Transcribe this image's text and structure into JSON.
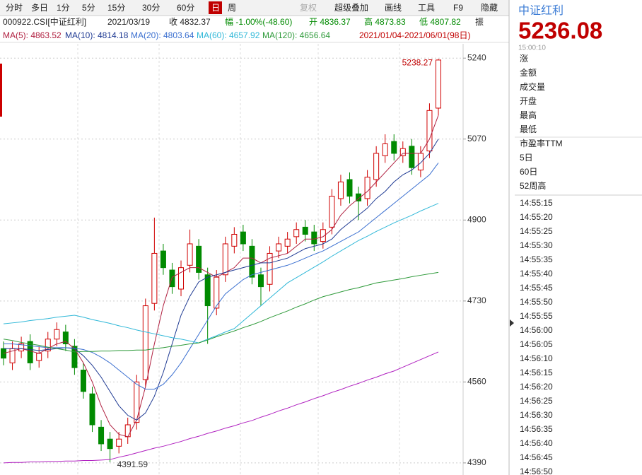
{
  "toolbar": {
    "periods": [
      "分时",
      "多日",
      "1分",
      "5分",
      "15分",
      "30分",
      "60分",
      "日",
      "周"
    ],
    "tools": [
      "复权",
      "超级叠加",
      "画线",
      "工具",
      "F9",
      "隐藏"
    ]
  },
  "info": {
    "code": "000922.CSI[中证红利]",
    "date": "2021/03/19",
    "close": "收 4832.37",
    "change": "幅 -1.00%(-48.60)",
    "open": "开 4836.37",
    "high": "高 4873.83",
    "low": "低 4807.82",
    "amp": "振",
    "range": "2021/01/04-2021/06/01(98日)"
  },
  "ma_legend": [
    "MA(5): 4863.52",
    "MA(10): 4814.18",
    "MA(20): 4803.64",
    "MA(60): 4657.92",
    "MA(120): 4656.64"
  ],
  "quote": {
    "name": "中证红利",
    "price": "5236.08",
    "time": "15:00:10",
    "fields": [
      "涨",
      "金额",
      "成交量",
      "开盘",
      "最高",
      "最低"
    ],
    "fields2": [
      "市盈率TTM",
      "5日",
      "60日",
      "52周高"
    ],
    "ticks": [
      "14:55:15",
      "14:55:20",
      "14:55:25",
      "14:55:30",
      "14:55:35",
      "14:55:40",
      "14:55:45",
      "14:55:50",
      "14:55:55",
      "14:56:00",
      "14:56:05",
      "14:56:10",
      "14:56:15",
      "14:56:20",
      "14:56:25",
      "14:56:30",
      "14:56:35",
      "14:56:40",
      "14:56:45",
      "14:56:50"
    ]
  },
  "chart_data": {
    "type": "candlestick",
    "ylim": [
      4375,
      5270
    ],
    "yticks": [
      4390,
      4560,
      4730,
      4900,
      5070,
      5240
    ],
    "grid": true,
    "up_color": "#d00000",
    "down_color": "#008a00",
    "open": [
      4630,
      4600,
      4625,
      4645,
      4605,
      4625,
      4650,
      4665,
      4635,
      4585,
      4535,
      4465,
      4440,
      4425,
      4445,
      4475,
      4565,
      4725,
      4835,
      4795,
      4755,
      4805,
      4845,
      4785,
      4715,
      4785,
      4845,
      4875,
      4845,
      4785,
      4765,
      4835,
      4845,
      4865,
      4885,
      4875,
      4855,
      4885,
      4945,
      4985,
      4955,
      4945,
      4985,
      5035,
      5065,
      5035,
      5055,
      5005,
      5045,
      5135
    ],
    "high": [
      4645,
      4645,
      4655,
      4660,
      4635,
      4665,
      4685,
      4680,
      4650,
      4600,
      4550,
      4480,
      4455,
      4455,
      4485,
      4575,
      4735,
      4905,
      4850,
      4810,
      4815,
      4880,
      4860,
      4800,
      4795,
      4865,
      4885,
      4890,
      4860,
      4800,
      4845,
      4865,
      4875,
      4895,
      4900,
      4890,
      4895,
      4965,
      4995,
      5000,
      4970,
      5005,
      5055,
      5080,
      5080,
      5065,
      5070,
      5055,
      5145,
      5238.27
    ],
    "low": [
      4595,
      4585,
      4610,
      4585,
      4590,
      4610,
      4635,
      4625,
      4575,
      4525,
      4455,
      4415,
      4391.59,
      4410,
      4430,
      4460,
      4550,
      4710,
      4785,
      4745,
      4740,
      4790,
      4775,
      4640,
      4700,
      4770,
      4830,
      4835,
      4765,
      4720,
      4750,
      4820,
      4830,
      4850,
      4855,
      4835,
      4840,
      4870,
      4930,
      4935,
      4900,
      4930,
      4970,
      5020,
      5025,
      5020,
      4995,
      4990,
      5030,
      5120
    ],
    "close": [
      4610,
      4630,
      4640,
      4600,
      4620,
      4650,
      4670,
      4640,
      4590,
      4540,
      4470,
      4430,
      4420,
      4440,
      4470,
      4560,
      4720,
      4830,
      4800,
      4760,
      4800,
      4850,
      4790,
      4720,
      4780,
      4850,
      4870,
      4850,
      4780,
      4760,
      4830,
      4850,
      4860,
      4880,
      4870,
      4850,
      4880,
      4950,
      4980,
      4950,
      4940,
      4990,
      5040,
      5060,
      5040,
      5050,
      5010,
      5040,
      5130,
      5236
    ],
    "series": [
      {
        "color": "#b02040",
        "values": [
          4620,
          4625,
          4630,
          4625,
          4620,
          4630,
          4640,
          4645,
          4630,
          4600,
          4560,
          4510,
          4470,
          4450,
          4445,
          4480,
          4550,
          4640,
          4720,
          4780,
          4790,
          4800,
          4800,
          4790,
          4780,
          4790,
          4800,
          4820,
          4820,
          4810,
          4820,
          4825,
          4830,
          4845,
          4860,
          4860,
          4865,
          4880,
          4910,
          4930,
          4945,
          4960,
          4980,
          5000,
          5020,
          5040,
          5040,
          5040,
          5070,
          5120
        ]
      },
      {
        "color": "#1f3a93",
        "values": [
          4630,
          4630,
          4630,
          4628,
          4626,
          4628,
          4630,
          4632,
          4630,
          4615,
          4595,
          4570,
          4540,
          4510,
          4490,
          4480,
          4495,
          4530,
          4580,
          4640,
          4700,
          4740,
          4770,
          4780,
          4785,
          4790,
          4795,
          4800,
          4805,
          4810,
          4810,
          4815,
          4820,
          4830,
          4840,
          4845,
          4850,
          4860,
          4880,
          4895,
          4910,
          4925,
          4945,
          4960,
          4980,
          4995,
          5005,
          5020,
          5040,
          5070
        ]
      },
      {
        "color": "#3a6fd0",
        "values": [
          4640,
          4640,
          4638,
          4636,
          4634,
          4632,
          4632,
          4632,
          4631,
          4628,
          4622,
          4612,
          4600,
          4585,
          4570,
          4555,
          4545,
          4545,
          4555,
          4575,
          4600,
          4630,
          4660,
          4690,
          4720,
          4745,
          4760,
          4775,
          4785,
          4790,
          4795,
          4800,
          4805,
          4812,
          4820,
          4828,
          4835,
          4845,
          4855,
          4865,
          4875,
          4890,
          4905,
          4920,
          4935,
          4950,
          4965,
          4980,
          4995,
          5020
        ]
      },
      {
        "color": "#30b8d8",
        "values": [
          4682,
          4684,
          4686,
          4689,
          4691,
          4693,
          4696,
          4698,
          4700,
          4696,
          4691,
          4687,
          4683,
          4678,
          4674,
          4669,
          4665,
          4661,
          4657,
          4653,
          4650,
          4646,
          4642,
          4650,
          4657,
          4665,
          4672,
          4688,
          4704,
          4720,
          4736,
          4752,
          4768,
          4779,
          4790,
          4801,
          4812,
          4824,
          4835,
          4846,
          4857,
          4866,
          4876,
          4885,
          4894,
          4902,
          4910,
          4919,
          4927,
          4935
        ]
      },
      {
        "color": "#2e9a3a",
        "values": [
          4650,
          4647,
          4643,
          4640,
          4637,
          4633,
          4630,
          4627,
          4623,
          4624,
          4624,
          4625,
          4625,
          4626,
          4626,
          4627,
          4627,
          4630,
          4632,
          4635,
          4637,
          4640,
          4642,
          4648,
          4655,
          4661,
          4667,
          4674,
          4680,
          4687,
          4695,
          4702,
          4709,
          4717,
          4724,
          4732,
          4739,
          4744,
          4749,
          4754,
          4758,
          4763,
          4768,
          4771,
          4774,
          4777,
          4781,
          4784,
          4787,
          4790
        ]
      },
      {
        "color": "#b020c0",
        "values": [
          4390,
          4391,
          4391,
          4392,
          4392,
          4393,
          4393,
          4394,
          4394,
          4395,
          4395,
          4396,
          4397,
          4402,
          4406,
          4411,
          4416,
          4421,
          4425,
          4430,
          4435,
          4441,
          4446,
          4452,
          4457,
          4463,
          4468,
          4474,
          4479,
          4486,
          4492,
          4499,
          4505,
          4512,
          4518,
          4525,
          4531,
          4538,
          4544,
          4551,
          4557,
          4564,
          4570,
          4577,
          4583,
          4591,
          4599,
          4607,
          4615,
          4623
        ]
      }
    ]
  }
}
